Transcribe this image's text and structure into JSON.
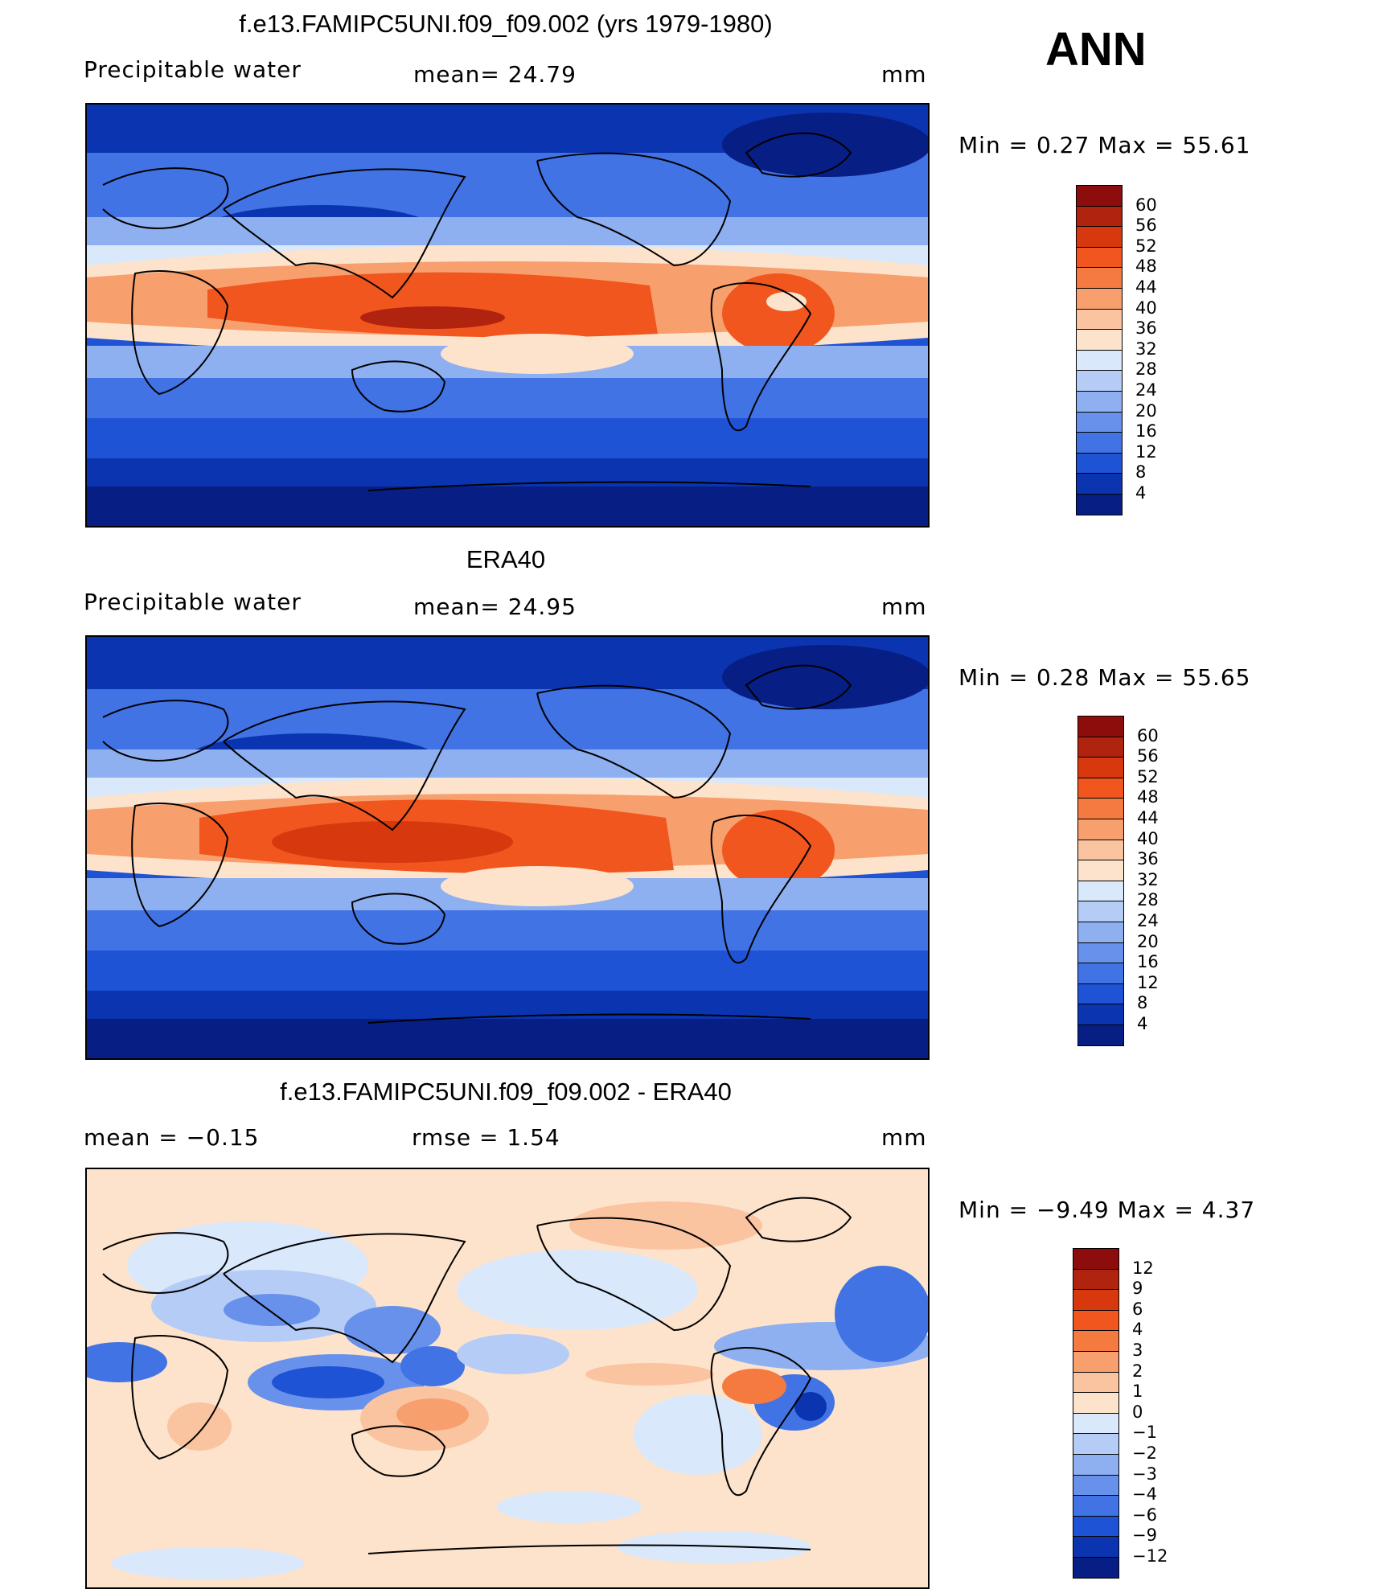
{
  "season": "ANN",
  "panels": [
    {
      "title": "f.e13.FAMIPC5UNI.f09_f09.002 (yrs 1979-1980)",
      "left_label": "Precipitable  water",
      "mid_label": "mean=   24.79",
      "units": "mm",
      "stats": "Min  =    0.27  Max  =    55.61",
      "colorbar_labels": [
        "60",
        "56",
        "52",
        "48",
        "44",
        "40",
        "36",
        "32",
        "28",
        "24",
        "20",
        "16",
        "12",
        "8",
        "4"
      ],
      "colorbar_colors": [
        "#8c0d0b",
        "#b0240f",
        "#d8380e",
        "#f0561e",
        "#f57a40",
        "#f89f6e",
        "#fbc4a1",
        "#fde3cc",
        "#d9e8fb",
        "#b5cdf6",
        "#8eb0f0",
        "#6791eb",
        "#4173e5",
        "#1f53d6",
        "#0b34b0",
        "#071e85"
      ]
    },
    {
      "title": "ERA40",
      "left_label": "Precipitable  water",
      "mid_label": "mean=   24.95",
      "units": "mm",
      "stats": "Min  =    0.28  Max  =    55.65",
      "colorbar_labels": [
        "60",
        "56",
        "52",
        "48",
        "44",
        "40",
        "36",
        "32",
        "28",
        "24",
        "20",
        "16",
        "12",
        "8",
        "4"
      ],
      "colorbar_colors": [
        "#8c0d0b",
        "#b0240f",
        "#d8380e",
        "#f0561e",
        "#f57a40",
        "#f89f6e",
        "#fbc4a1",
        "#fde3cc",
        "#d9e8fb",
        "#b5cdf6",
        "#8eb0f0",
        "#6791eb",
        "#4173e5",
        "#1f53d6",
        "#0b34b0",
        "#071e85"
      ]
    },
    {
      "title": "f.e13.FAMIPC5UNI.f09_f09.002 - ERA40",
      "left_label": "mean  =    −0.15",
      "mid_label": "rmse  =     1.54",
      "units": "mm",
      "stats": "Min  =   −9.49  Max  =     4.37",
      "colorbar_labels": [
        "12",
        "9",
        "6",
        "4",
        "3",
        "2",
        "1",
        "0",
        "−1",
        "−2",
        "−3",
        "−4",
        "−6",
        "−9",
        "−12"
      ],
      "colorbar_colors": [
        "#8c0d0b",
        "#b0240f",
        "#d8380e",
        "#f0561e",
        "#f57a40",
        "#f89f6e",
        "#fbc4a1",
        "#fde3cc",
        "#d9e8fb",
        "#b5cdf6",
        "#8eb0f0",
        "#6791eb",
        "#4173e5",
        "#1f53d6",
        "#0b34b0",
        "#071e85"
      ]
    }
  ]
}
